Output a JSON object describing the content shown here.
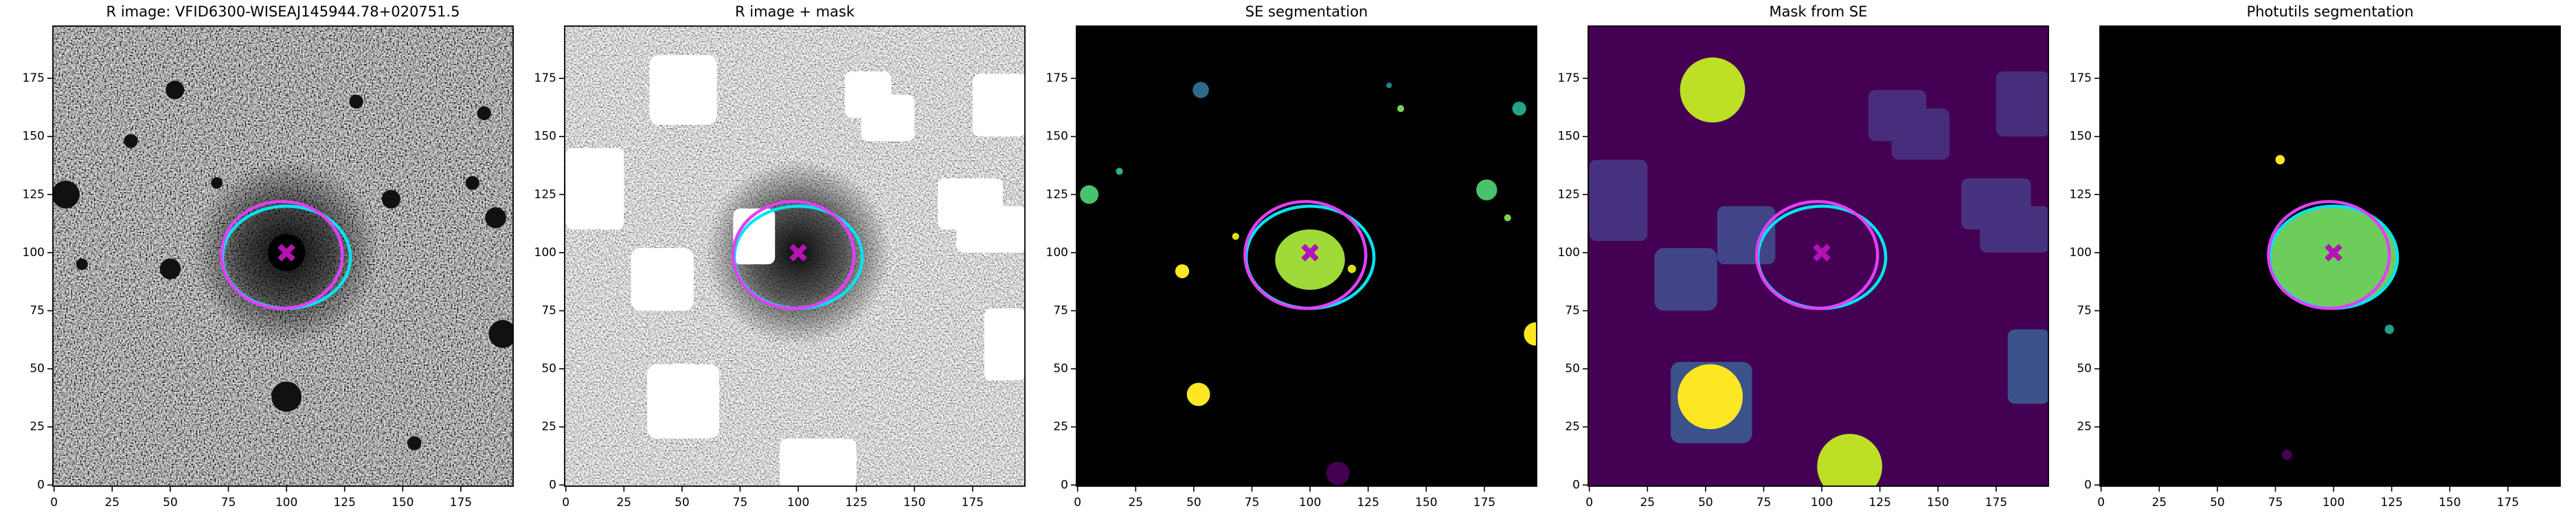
{
  "chart_data": [
    {
      "type": "image",
      "title": "R image: VFID6300-WISEAJ145944.78+020751.5",
      "xlim": [
        -0.5,
        197.5
      ],
      "ylim": [
        -0.5,
        197.5
      ],
      "xticks": [
        0,
        25,
        50,
        75,
        100,
        125,
        150,
        175
      ],
      "yticks": [
        0,
        25,
        50,
        75,
        100,
        125,
        150,
        175
      ],
      "ellipses": [
        {
          "color": "#00e5ee",
          "cx": 100,
          "cy": 98,
          "width": 55,
          "height": 44
        },
        {
          "color": "#e040fb",
          "cx": 98,
          "cy": 99,
          "width": 52,
          "height": 46
        }
      ],
      "marker": {
        "x": 100,
        "y": 100,
        "color": "#b412b4"
      }
    },
    {
      "type": "image",
      "title": "R image + mask",
      "xlim": [
        -0.5,
        197.5
      ],
      "ylim": [
        -0.5,
        197.5
      ],
      "xticks": [
        0,
        25,
        50,
        75,
        100,
        125,
        150,
        175
      ],
      "yticks": [
        0,
        25,
        50,
        75,
        100,
        125,
        150,
        175
      ],
      "ellipses": [
        {
          "color": "#00e5ee",
          "cx": 100,
          "cy": 98,
          "width": 55,
          "height": 44
        },
        {
          "color": "#e040fb",
          "cx": 98,
          "cy": 99,
          "width": 52,
          "height": 46
        }
      ],
      "marker": {
        "x": 100,
        "y": 100,
        "color": "#b412b4"
      }
    },
    {
      "type": "image",
      "title": "SE segmentation",
      "xlim": [
        -0.5,
        197.5
      ],
      "ylim": [
        -0.5,
        197.5
      ],
      "xticks": [
        0,
        25,
        50,
        75,
        100,
        125,
        150,
        175
      ],
      "yticks": [
        0,
        25,
        50,
        75,
        100,
        125,
        150,
        175
      ],
      "ellipses": [
        {
          "color": "#00e5ee",
          "cx": 100,
          "cy": 98,
          "width": 55,
          "height": 44
        },
        {
          "color": "#e040fb",
          "cx": 98,
          "cy": 99,
          "width": 52,
          "height": 46
        }
      ],
      "marker": {
        "x": 100,
        "y": 100,
        "color": "#b412b4"
      }
    },
    {
      "type": "image",
      "title": "Mask from SE",
      "xlim": [
        -0.5,
        197.5
      ],
      "ylim": [
        -0.5,
        197.5
      ],
      "xticks": [
        0,
        25,
        50,
        75,
        100,
        125,
        150,
        175
      ],
      "yticks": [
        0,
        25,
        50,
        75,
        100,
        125,
        150,
        175
      ],
      "ellipses": [
        {
          "color": "#00e5ee",
          "cx": 100,
          "cy": 98,
          "width": 55,
          "height": 44
        },
        {
          "color": "#e040fb",
          "cx": 98,
          "cy": 99,
          "width": 52,
          "height": 46
        }
      ],
      "marker": {
        "x": 100,
        "y": 100,
        "color": "#b412b4"
      }
    },
    {
      "type": "image",
      "title": "Photutils segmentation",
      "xlim": [
        -0.5,
        197.5
      ],
      "ylim": [
        -0.5,
        197.5
      ],
      "xticks": [
        0,
        25,
        50,
        75,
        100,
        125,
        150,
        175
      ],
      "yticks": [
        0,
        25,
        50,
        75,
        100,
        125,
        150,
        175
      ],
      "ellipses": [
        {
          "color": "#00e5ee",
          "cx": 100,
          "cy": 98,
          "width": 55,
          "height": 44
        },
        {
          "color": "#e040fb",
          "cx": 98,
          "cy": 99,
          "width": 52,
          "height": 46
        }
      ],
      "marker": {
        "x": 100,
        "y": 100,
        "color": "#b412b4"
      }
    }
  ]
}
